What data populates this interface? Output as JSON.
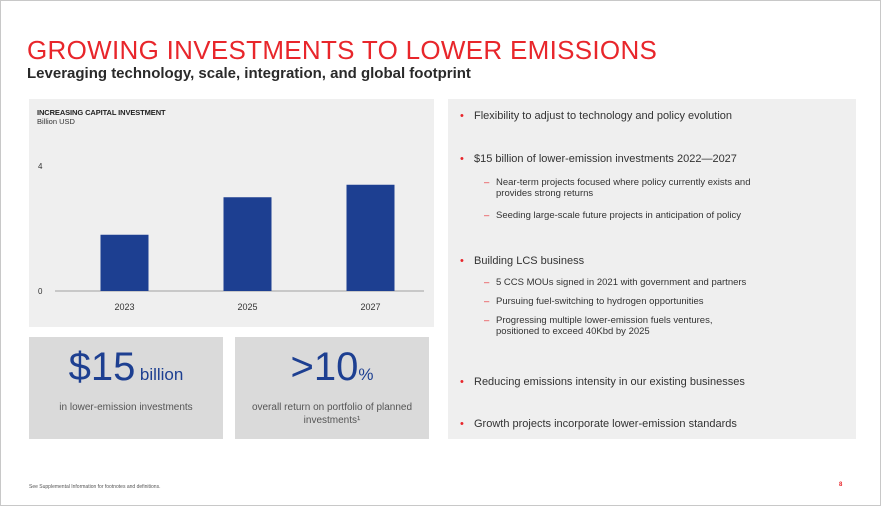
{
  "slide": {
    "title": "GROWING INVESTMENTS TO LOWER EMISSIONS",
    "subtitle": "Leveraging technology, scale, integration, and global footprint",
    "footnote": "See Supplemental Information for footnotes and definitions.",
    "page_number": "8"
  },
  "chart_data": {
    "type": "bar",
    "title": "INCREASING CAPITAL INVESTMENT",
    "ylabel": "Billion USD",
    "xlabel": "",
    "categories": [
      "2023",
      "2025",
      "2027"
    ],
    "values": [
      1.8,
      3.0,
      3.4
    ],
    "ylim": [
      0,
      4
    ],
    "yticks": [
      0,
      4
    ],
    "bar_color": "#1d3f91"
  },
  "stats": [
    {
      "number": "$15",
      "unit": "billion",
      "description": "in lower-emission investments"
    },
    {
      "number": ">10",
      "unit": "%",
      "description": "overall return on portfolio of planned investments¹"
    }
  ],
  "bullets": [
    {
      "text": "Flexibility to adjust to technology and policy evolution",
      "subs": []
    },
    {
      "text": "$15 billion of lower-emission investments 2022—2027",
      "subs": [
        "Near-term projects focused where policy currently exists and\nprovides strong returns",
        "Seeding large-scale future projects in anticipation of policy"
      ]
    },
    {
      "text": "Building LCS business",
      "subs": [
        "5 CCS MOUs signed in 2021 with government and partners",
        "Pursuing fuel-switching to hydrogen opportunities",
        "Progressing multiple lower-emission fuels ventures,\npositioned to exceed 40Kbd by 2025"
      ]
    },
    {
      "text": "Reducing emissions intensity in our existing businesses",
      "subs": []
    },
    {
      "text": "Growth projects incorporate lower-emission standards",
      "subs": []
    }
  ],
  "colors": {
    "accent": "#e8262b",
    "brand_blue": "#1d3f91",
    "panel": "#efefef",
    "stat_panel": "#dadada"
  }
}
